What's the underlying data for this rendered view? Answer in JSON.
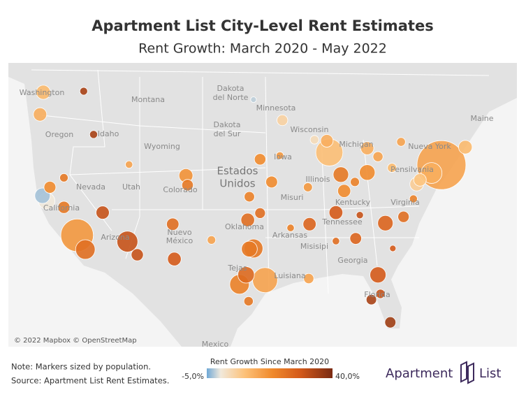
{
  "header": {
    "title": "Apartment List City-Level Rent Estimates",
    "subtitle": "Rent Growth: March 2020 - May 2022"
  },
  "map": {
    "labels": [
      "Washington",
      "Oregon",
      "Idaho",
      "Montana",
      "Dakota",
      "del Norte",
      "Dakota",
      "del Sur",
      "Minnesota",
      "Wisconsin",
      "Wyoming",
      "Nevada",
      "Utah",
      "Colorado",
      "California",
      "Arizona",
      "Nuevo",
      "México",
      "Estados",
      "Unidos",
      "Iowa",
      "Illinois",
      "Michigan",
      "Misuri",
      "Oklahoma",
      "Arkansas",
      "Misisipi",
      "Tejas",
      "Luisiana",
      "Georgia",
      "Tennessee",
      "Kentucky",
      "Virginia",
      "Pensilvania",
      "Nueva York",
      "Florida",
      "Maine",
      "Mexico"
    ],
    "copyright": "© 2022 Mapbox © OpenStreetMap",
    "markers": [
      {
        "lon": -74.0,
        "lat": 40.7,
        "rent_growth": 14,
        "population": 8.8
      },
      {
        "lon": -118.2,
        "lat": 34.05,
        "rent_growth": 16,
        "population": 3.9
      },
      {
        "lon": -87.6,
        "lat": 41.9,
        "rent_growth": 9,
        "population": 2.7
      },
      {
        "lon": -95.4,
        "lat": 29.8,
        "rent_growth": 14,
        "population": 2.3
      },
      {
        "lon": -112.1,
        "lat": 33.45,
        "rent_growth": 30,
        "population": 1.6
      },
      {
        "lon": -75.2,
        "lat": 39.95,
        "rent_growth": 12,
        "population": 1.6
      },
      {
        "lon": -98.5,
        "lat": 29.4,
        "rent_growth": 20,
        "population": 1.4
      },
      {
        "lon": -117.2,
        "lat": 32.7,
        "rent_growth": 24,
        "population": 1.4
      },
      {
        "lon": -96.8,
        "lat": 32.8,
        "rent_growth": 22,
        "population": 1.3
      },
      {
        "lon": -121.9,
        "lat": 37.3,
        "rent_growth": 0,
        "population": 1.0
      },
      {
        "lon": -97.7,
        "lat": 30.3,
        "rent_growth": 25,
        "population": 1.0
      },
      {
        "lon": -81.7,
        "lat": 30.3,
        "rent_growth": 28,
        "population": 0.95
      },
      {
        "lon": -97.3,
        "lat": 32.75,
        "rent_growth": 22,
        "population": 0.92
      },
      {
        "lon": -83.0,
        "lat": 40.0,
        "rent_growth": 18,
        "population": 0.9
      },
      {
        "lon": -86.2,
        "lat": 39.8,
        "rent_growth": 22,
        "population": 0.88
      },
      {
        "lon": -80.8,
        "lat": 35.2,
        "rent_growth": 26,
        "population": 0.87
      },
      {
        "lon": -122.4,
        "lat": 37.8,
        "rent_growth": -3,
        "population": 0.87
      },
      {
        "lon": -122.3,
        "lat": 47.6,
        "rent_growth": 10,
        "population": 0.74
      },
      {
        "lon": -105.0,
        "lat": 39.7,
        "rent_growth": 17,
        "population": 0.71
      },
      {
        "lon": -77.0,
        "lat": 38.9,
        "rent_growth": 6,
        "population": 0.69
      },
      {
        "lon": -86.8,
        "lat": 36.2,
        "rent_growth": 28,
        "population": 0.69
      },
      {
        "lon": -97.5,
        "lat": 35.5,
        "rent_growth": 24,
        "population": 0.68
      },
      {
        "lon": -106.4,
        "lat": 31.8,
        "rent_growth": 28,
        "population": 0.68
      },
      {
        "lon": -71.1,
        "lat": 42.4,
        "rent_growth": 10,
        "population": 0.68
      },
      {
        "lon": -122.7,
        "lat": 45.5,
        "rent_growth": 12,
        "population": 0.65
      },
      {
        "lon": -115.1,
        "lat": 36.2,
        "rent_growth": 30,
        "population": 0.64
      },
      {
        "lon": -83.0,
        "lat": 42.3,
        "rent_growth": 12,
        "population": 0.63
      },
      {
        "lon": -90.0,
        "lat": 35.1,
        "rent_growth": 26,
        "population": 0.63
      },
      {
        "lon": -85.8,
        "lat": 38.25,
        "rent_growth": 18,
        "population": 0.62
      },
      {
        "lon": -76.6,
        "lat": 39.3,
        "rent_growth": 8,
        "population": 0.58
      },
      {
        "lon": -87.9,
        "lat": 43.0,
        "rent_growth": 12,
        "population": 0.58
      },
      {
        "lon": -106.6,
        "lat": 35.1,
        "rent_growth": 24,
        "population": 0.56
      },
      {
        "lon": -110.9,
        "lat": 32.2,
        "rent_growth": 30,
        "population": 0.54
      },
      {
        "lon": -119.8,
        "lat": 36.7,
        "rent_growth": 22,
        "population": 0.54
      },
      {
        "lon": -121.5,
        "lat": 38.6,
        "rent_growth": 18,
        "population": 0.52
      },
      {
        "lon": -94.6,
        "lat": 39.1,
        "rent_growth": 18,
        "population": 0.51
      },
      {
        "lon": -84.4,
        "lat": 33.75,
        "rent_growth": 26,
        "population": 0.5
      },
      {
        "lon": -104.8,
        "lat": 38.8,
        "rent_growth": 22,
        "population": 0.48
      },
      {
        "lon": -96.0,
        "lat": 41.25,
        "rent_growth": 18,
        "population": 0.48
      },
      {
        "lon": -78.6,
        "lat": 35.8,
        "rent_growth": 24,
        "population": 0.47
      },
      {
        "lon": -80.2,
        "lat": 25.8,
        "rent_growth": 35,
        "population": 0.45
      },
      {
        "lon": -93.3,
        "lat": 44.95,
        "rent_growth": 5,
        "population": 0.43
      },
      {
        "lon": -96.0,
        "lat": 36.15,
        "rent_growth": 24,
        "population": 0.41
      },
      {
        "lon": -82.5,
        "lat": 27.95,
        "rent_growth": 34,
        "population": 0.39
      },
      {
        "lon": -97.3,
        "lat": 37.7,
        "rent_growth": 20,
        "population": 0.39
      },
      {
        "lon": -90.1,
        "lat": 29.95,
        "rent_growth": 14,
        "population": 0.38
      },
      {
        "lon": -81.7,
        "lat": 41.5,
        "rent_growth": 14,
        "population": 0.37
      },
      {
        "lon": -97.4,
        "lat": 27.8,
        "rent_growth": 22,
        "population": 0.32
      },
      {
        "lon": -81.4,
        "lat": 28.5,
        "rent_growth": 30,
        "population": 0.31
      },
      {
        "lon": -80.0,
        "lat": 40.44,
        "rent_growth": 10,
        "population": 0.3
      },
      {
        "lon": -90.2,
        "lat": 38.6,
        "rent_growth": 16,
        "population": 0.3
      },
      {
        "lon": -84.5,
        "lat": 39.1,
        "rent_growth": 20,
        "population": 0.3
      },
      {
        "lon": -78.9,
        "lat": 42.9,
        "rent_growth": 14,
        "population": 0.28
      },
      {
        "lon": -89.4,
        "lat": 43.1,
        "rent_growth": 3,
        "population": 0.27
      },
      {
        "lon": -101.9,
        "lat": 33.6,
        "rent_growth": 14,
        "population": 0.26
      },
      {
        "lon": -119.8,
        "lat": 39.5,
        "rent_growth": 22,
        "population": 0.26
      },
      {
        "lon": -116.2,
        "lat": 43.6,
        "rent_growth": 34,
        "population": 0.23
      },
      {
        "lon": -77.4,
        "lat": 37.5,
        "rent_growth": 20,
        "population": 0.23
      },
      {
        "lon": -117.4,
        "lat": 47.7,
        "rent_growth": 34,
        "population": 0.22
      },
      {
        "lon": -93.6,
        "lat": 41.6,
        "rent_growth": 16,
        "population": 0.21
      },
      {
        "lon": -111.9,
        "lat": 40.75,
        "rent_growth": 14,
        "population": 0.2
      },
      {
        "lon": -86.8,
        "lat": 33.5,
        "rent_growth": 24,
        "population": 0.2
      },
      {
        "lon": -92.3,
        "lat": 34.75,
        "rent_growth": 20,
        "population": 0.2
      },
      {
        "lon": -83.9,
        "lat": 35.96,
        "rent_growth": 30,
        "population": 0.19
      },
      {
        "lon": -79.9,
        "lat": 32.8,
        "rent_growth": 28,
        "population": 0.15
      },
      {
        "lon": -96.8,
        "lat": 46.9,
        "rent_growth": -2,
        "population": 0.12
      }
    ]
  },
  "legend": {
    "title": "Rent Growth Since March 2020",
    "min": {
      "value": -5,
      "label": "-5,0%"
    },
    "max": {
      "value": 40,
      "label": "40,0%"
    }
  },
  "footer": {
    "note": "Note: Markers sized by population.",
    "source": "Source: Apartment List Rent Estimates.",
    "logo_left": "Apartment",
    "logo_right": "List"
  }
}
